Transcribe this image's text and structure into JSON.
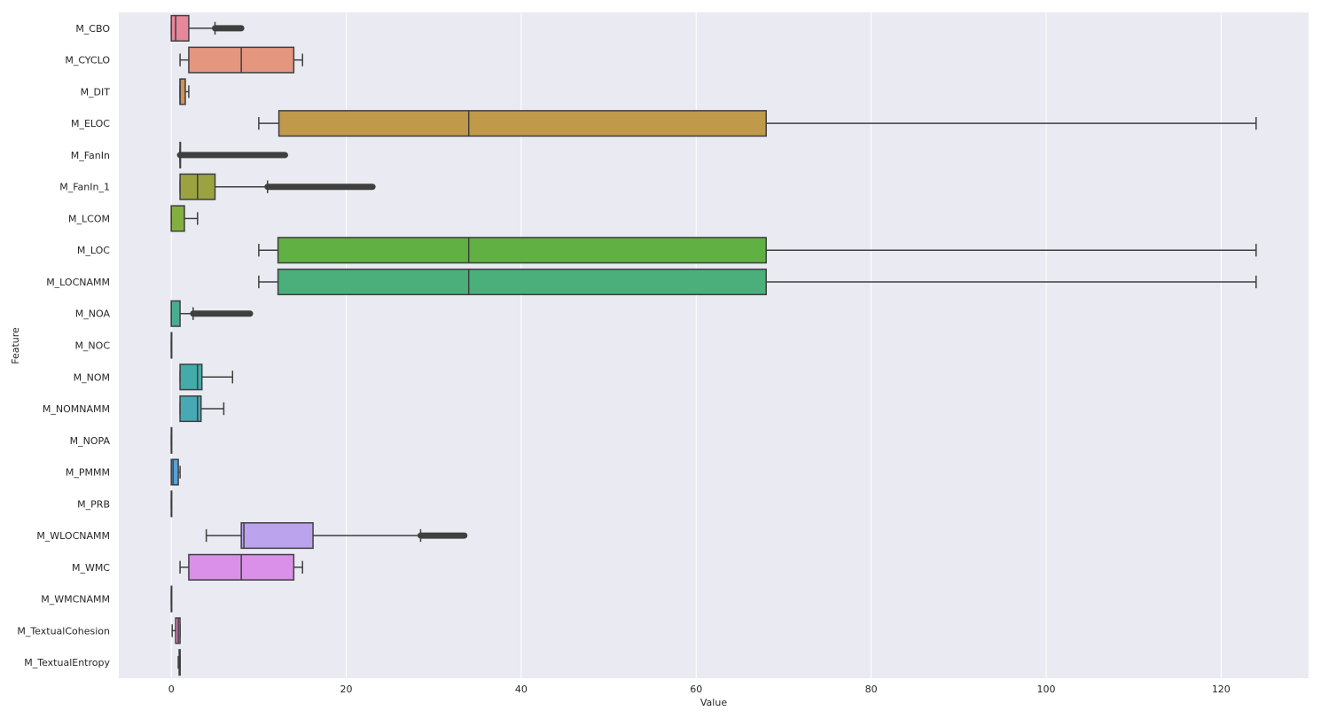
{
  "chart_data": {
    "type": "boxplot",
    "orientation": "horizontal",
    "xlabel": "Value",
    "ylabel": "Feature",
    "xlim": [
      -6,
      130
    ],
    "xticks": [
      0,
      20,
      40,
      60,
      80,
      100,
      120
    ],
    "grid": true,
    "style": {
      "background": "#EAEAF2",
      "grid_color": "#FFFFFF",
      "box_edge": "#3F3F3F"
    },
    "categories": [
      "M_CBO",
      "M_CYCLO",
      "M_DIT",
      "M_ELOC",
      "M_FanIn",
      "M_FanIn_1",
      "M_LCOM",
      "M_LOC",
      "M_LOCNAMM",
      "M_NOA",
      "M_NOC",
      "M_NOM",
      "M_NOMNAMM",
      "M_NOPA",
      "M_PMMM",
      "M_PRB",
      "M_WLOCNAMM",
      "M_WMC",
      "M_WMCNAMM",
      "M_TextualCohesion",
      "M_TextualEntropy"
    ],
    "series": [
      {
        "name": "M_CBO",
        "color": "#E8879A",
        "whisker_low": 0,
        "q1": 0,
        "median": 0.5,
        "q3": 2,
        "whisker_high": 5,
        "outliers_range": [
          5,
          8
        ]
      },
      {
        "name": "M_CYCLO",
        "color": "#E5967F",
        "whisker_low": 1,
        "q1": 2,
        "median": 8,
        "q3": 14,
        "whisker_high": 15,
        "outliers_range": null
      },
      {
        "name": "M_DIT",
        "color": "#D49055",
        "whisker_low": 1,
        "q1": 1,
        "median": 1,
        "q3": 1.6,
        "whisker_high": 2,
        "outliers_range": null
      },
      {
        "name": "M_ELOC",
        "color": "#C09A4A",
        "whisker_low": 10,
        "q1": 12.3,
        "median": 34,
        "q3": 68,
        "whisker_high": 124,
        "outliers_range": null
      },
      {
        "name": "M_FanIn",
        "color": "#A9A544",
        "whisker_low": 1,
        "q1": 1,
        "median": 1,
        "q3": 1,
        "whisker_high": 1,
        "outliers_range": [
          1,
          13
        ]
      },
      {
        "name": "M_FanIn_1",
        "color": "#9AA33F",
        "whisker_low": 1,
        "q1": 1,
        "median": 3,
        "q3": 5,
        "whisker_high": 11,
        "outliers_range": [
          11,
          23
        ]
      },
      {
        "name": "M_LCOM",
        "color": "#84AE3F",
        "whisker_low": 0,
        "q1": 0,
        "median": 0,
        "q3": 1.5,
        "whisker_high": 3,
        "outliers_range": null
      },
      {
        "name": "M_LOC",
        "color": "#61B044",
        "whisker_low": 10,
        "q1": 12.2,
        "median": 34,
        "q3": 68,
        "whisker_high": 124,
        "outliers_range": null
      },
      {
        "name": "M_LOCNAMM",
        "color": "#4AAF7A",
        "whisker_low": 10,
        "q1": 12.2,
        "median": 34,
        "q3": 68,
        "whisker_high": 124,
        "outliers_range": null
      },
      {
        "name": "M_NOA",
        "color": "#49AD8F",
        "whisker_low": 0,
        "q1": 0,
        "median": 0,
        "q3": 1,
        "whisker_high": 2.5,
        "outliers_range": [
          2.5,
          9
        ]
      },
      {
        "name": "M_NOC",
        "color": "#4AAC9E",
        "whisker_low": 0,
        "q1": 0,
        "median": 0,
        "q3": 0,
        "whisker_high": 0,
        "outliers_range": null
      },
      {
        "name": "M_NOM",
        "color": "#45AAAA",
        "whisker_low": 1,
        "q1": 1,
        "median": 3,
        "q3": 3.5,
        "whisker_high": 7,
        "outliers_range": null
      },
      {
        "name": "M_NOMNAMM",
        "color": "#48A9B5",
        "whisker_low": 1,
        "q1": 1,
        "median": 3,
        "q3": 3.4,
        "whisker_high": 6,
        "outliers_range": null
      },
      {
        "name": "M_NOPA",
        "color": "#4CA6C2",
        "whisker_low": 0,
        "q1": 0,
        "median": 0,
        "q3": 0,
        "whisker_high": 0,
        "outliers_range": null
      },
      {
        "name": "M_PMMM",
        "color": "#5A9FD5",
        "whisker_low": 0,
        "q1": 0,
        "median": 0.2,
        "q3": 0.8,
        "whisker_high": 1,
        "outliers_range": null
      },
      {
        "name": "M_PRB",
        "color": "#8C9FE0",
        "whisker_low": 0,
        "q1": 0,
        "median": 0,
        "q3": 0,
        "whisker_high": 0,
        "outliers_range": null
      },
      {
        "name": "M_WLOCNAMM",
        "color": "#BBA3EE",
        "whisker_low": 4,
        "q1": 8,
        "median": 8.3,
        "q3": 16.2,
        "whisker_high": 28.5,
        "outliers_range": [
          28.5,
          33.5
        ]
      },
      {
        "name": "M_WMC",
        "color": "#DA90E8",
        "whisker_low": 1,
        "q1": 2,
        "median": 8,
        "q3": 14,
        "whisker_high": 15,
        "outliers_range": null
      },
      {
        "name": "M_WMCNAMM",
        "color": "#E37FD8",
        "whisker_low": 0,
        "q1": 0,
        "median": 0,
        "q3": 0,
        "whisker_high": 0,
        "outliers_range": null
      },
      {
        "name": "M_TextualCohesion",
        "color": "#EB83C2",
        "whisker_low": 0.1,
        "q1": 0.5,
        "median": 0.8,
        "q3": 1,
        "whisker_high": 1,
        "outliers_range": null
      },
      {
        "name": "M_TextualEntropy",
        "color": "#ED86AD",
        "whisker_low": 0.8,
        "q1": 0.9,
        "median": 1,
        "q3": 1,
        "whisker_high": 1,
        "outliers_range": null
      }
    ]
  }
}
